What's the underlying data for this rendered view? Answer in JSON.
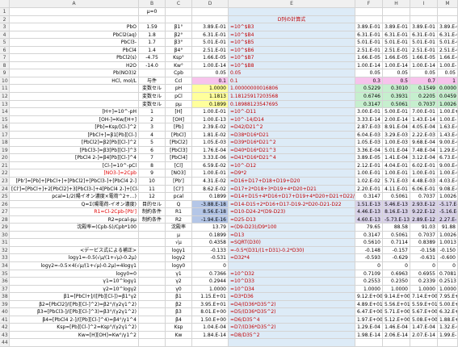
{
  "columns": [
    "A",
    "B",
    "C",
    "D",
    "E",
    "F",
    "H",
    "I",
    "M"
  ],
  "rows": [
    [
      "1",
      null,
      "μ=0",
      null,
      null,
      null,
      null,
      null,
      null,
      null
    ],
    [
      "2",
      null,
      null,
      null,
      null,
      "D列の計算式",
      null,
      null,
      null,
      null
    ],
    [
      "3",
      "PbO",
      "1.59",
      "β1°",
      "3.89.E-01",
      "=10^$B3",
      "3.89.E-01",
      "3.89.E-01",
      "3.89.E-01",
      "3.89.E-01"
    ],
    [
      "4",
      "PbCl2(aq)",
      "1.8",
      "β2°",
      "6.31.E-01",
      "=10^$B4",
      "6.31.E-01",
      "6.31.E-01",
      "6.31.E-01",
      "6.31.E-01"
    ],
    [
      "5",
      "PbCl3-",
      "1.7",
      "β3°",
      "5.01.E-01",
      "=10^$B5",
      "5.01.E-01",
      "5.01.E-01",
      "5.01.E-01",
      "5.01.E-01"
    ],
    [
      "6",
      "PbCl4",
      "1.4",
      "β4°",
      "2.51.E-01",
      "=10^$B6",
      "2.51.E-01",
      "2.51.E-01",
      "2.51.E-01",
      "2.51.E-01"
    ],
    [
      "7",
      "PbCl2(s)",
      "-4.75",
      "Ksp°",
      "1.66.E-05",
      "=10^$B7",
      "1.66.E-05",
      "1.66.E-05",
      "1.66.E-05",
      "1.66.E-05"
    ],
    [
      "8",
      "H2O",
      "-14.0",
      "Kw°",
      "1.00.E-14",
      "=10^$B8",
      "1.00.E-14",
      "1.00.E-14",
      "1.00.E-14",
      "1.00.E-14"
    ],
    [
      "9",
      "Pb(NO3)2",
      null,
      "Cpb",
      "0.05",
      "0.05",
      "0.05",
      "0.05",
      "0.05",
      "0.05"
    ],
    [
      "10",
      "HCl, mol/L",
      "与件",
      "Ccl",
      "0.1",
      "0.1",
      "0.3",
      "0.5",
      "0.7",
      "1"
    ],
    [
      "11",
      null,
      "変数セル",
      "pH",
      "1.0000",
      "1.00000000016806",
      "0.5229",
      "0.3010",
      "0.1549",
      "0.0000"
    ],
    [
      "12",
      null,
      "変数セル",
      "pCl",
      "1.1813",
      "1.18125917203568",
      "0.6746",
      "0.3931",
      "0.2205",
      "0.0459"
    ],
    [
      "13",
      null,
      "変数セル",
      "pμ",
      "0.1899",
      "0.18988123547695",
      "0.3147",
      "0.5061",
      "0.7037",
      "1.0026"
    ],
    [
      "14",
      "[H+]=10^-pH",
      "1",
      "[H]",
      "1.00.E-01",
      "=10^-D11",
      "3.00.E-01",
      "5.00.E-01",
      "7.00.E-01",
      "1.00.E+00"
    ],
    [
      "15",
      "[OH-]=Kw/[H+]",
      "2",
      "[OH]",
      "1.00.E-13",
      "=10^-14/D14",
      "3.33.E-14",
      "2.00.E-14",
      "1.43.E-14",
      "1.00.E-14"
    ],
    [
      "16",
      "[Pb]=Ksp/[Cl-]^2",
      "3",
      "[Pb]",
      "2.39.E-02",
      "=D42/D21^2",
      "2.87.E-03",
      "8.91.E-04",
      "4.05.E-04",
      "1.63.E-04"
    ],
    [
      "17",
      "[PbCl+]=β1[Pb][Cl-]",
      "4",
      "[PbCl]",
      "1.81.E-02",
      "=D38*D16*D21",
      "6.04.E-03",
      "3.29.E-03",
      "2.22.E-03",
      "1.43.E-03"
    ],
    [
      "18",
      "[PbCl2]=β2[Pb][Cl-]^2",
      "5",
      "[PbCl2]",
      "1.05.E-03",
      "=D39*D16*D21^2",
      "1.05.E-03",
      "1.00.E-03",
      "9.68.E-04",
      "9.00.E-04"
    ],
    [
      "19",
      "[PbCl3-]=β3[Pb][Cl-]^3",
      "6",
      "[PbCl3]",
      "1.76.E-04",
      "=D40*D16*D21^3",
      "3.36.E-04",
      "5.01.E-04",
      "7.48.E-04",
      "1.29.E-03"
    ],
    [
      "20",
      "[PbCl4 2-]=β4[Pb][Cl-]^4",
      "7",
      "[PbCl4]",
      "3.33.E-06",
      "=D41*D16*D21^4",
      "3.89.E-05",
      "1.41.E-04",
      "3.12.E-04",
      "6.73.E-04"
    ],
    [
      "21",
      "[Cl-]=10^-pCl",
      "8",
      "[Cl]",
      "6.59.E-02",
      "=10^-D12",
      "2.12.E-01",
      "4.04.E-01",
      "6.02.E-01",
      "9.00.E-01"
    ],
    [
      "22",
      "[NO3-]=2Cpb",
      "9",
      "[NO3]",
      "1.00.E-01",
      "=D9*2",
      "1.00.E-01",
      "1.00.E-01",
      "1.00.E-01",
      "1.00.E-01"
    ],
    [
      "23",
      "[Pb']=[Pb]+[PbCl+]+[PbCl2]+[PbCl3-]+[PbCl4 2-]",
      "10",
      "[Pb']",
      "4.31.E-02",
      "=D16+D17+D18+D19+D20",
      "1.02.E-02",
      "5.71.E-03",
      "4.48.E-03",
      "4.03.E-03"
    ],
    [
      "24",
      "[Cl']=[PbCl+]+2[PbCl2]+3[PbCl3-]+4[PbCl4 2-]+[Cl-]",
      "11",
      "[Cl']",
      "8.62.E-02",
      "=D17+2*D18+3*D19+4*D20+D21",
      "2.20.E-01",
      "4.11.E-01",
      "6.06.E-01",
      "9.08.E-01"
    ],
    [
      "25",
      "pcal=1/2(陽イオン濃度×電荷^2+…)",
      "12",
      "pcal",
      "0.1899",
      "=D14+D15+4*D16+D17+D19+4*D20+D21+D22/2",
      "0.3147",
      "0.5061",
      "0.7037",
      "1.0026"
    ],
    [
      "26",
      "Q=Σ(陽電荷-イオン濃度)",
      "目的セル",
      "Q",
      "-3.88.E-18",
      "=D14-D15+2*D16+D17-D19-2*D20-D21-D22",
      "1.51.E-13",
      "5.46.E-13",
      "2.93.E-12",
      "-5.17.E-12"
    ],
    [
      "27",
      "R1=Cl-2Cpb-[Pb']",
      "制約条件",
      "R1",
      "8.56.E-18",
      "=D10-D24-2*(D9-D23)",
      "4.46.E-13",
      "8.16.E-13",
      "9.22.E-12",
      "-5.16.E-12"
    ],
    [
      "28",
      "R2=pcal-pμ",
      "制約条件",
      "R2",
      "-1.94.E-16",
      "=D25-D13",
      "4.60.E-13",
      "-5.73.E-13",
      "2.89.E-12",
      "2.27.E-12"
    ],
    [
      "29",
      "沈殿率=(Cpb-S)/Cpb*100",
      null,
      "沈殿率",
      "13.79",
      "=(D9-D23)/D9*100",
      "79.65",
      "88.58",
      "91.03",
      "91.88"
    ],
    [
      "30",
      null,
      null,
      "μ",
      "0.1899",
      "=D13",
      "0.3147",
      "0.5061",
      "0.7037",
      "1.0026"
    ],
    [
      "31",
      null,
      null,
      "√μ",
      "0.4358",
      "=SQRT(D30)",
      "0.5610",
      "0.7114",
      "0.8389",
      "1.0013"
    ],
    [
      "32",
      "<デービス式による補正>",
      null,
      "logγ1",
      "-0.133",
      "=-0.5*(D31/(1+D31)-0.2*D30)",
      "-0.148",
      "-0.157",
      "-0.158",
      "-0.150"
    ],
    [
      "33",
      "logγ1=-0.5(√μ/(1+√μ)-0.2μ)",
      null,
      "logγ2",
      "-0.531",
      "=D32*4",
      "-0.593",
      "-0.629",
      "-0.631",
      "-0.600"
    ],
    [
      "34",
      "logγ2=-0.5×4(√μ/(1+√μ)-0.2μ)=4logγ1",
      null,
      "logγ0",
      "0",
      null,
      "0",
      "0",
      "0",
      "0"
    ],
    [
      "35",
      "logγ0=0",
      null,
      "γ1",
      "0.7366",
      "=10^D32",
      "0.7109",
      "0.6963",
      "0.6955",
      "0.7081"
    ],
    [
      "36",
      "γ1=10^logγ1",
      null,
      "γ2",
      "0.2944",
      "=10^D33",
      "0.2553",
      "0.2350",
      "0.2339",
      "0.2513"
    ],
    [
      "37",
      "γ2=10^logγ2",
      null,
      "γ0",
      "1.0000",
      "=10^D34",
      "1.0000",
      "1.0000",
      "1.0000",
      "1.0000"
    ],
    [
      "38",
      "β1=[PbCl+]/([Pb][Cl-])=β1°γ2",
      null,
      "β1",
      "1.15.E+01",
      "=D3*D36",
      "9.12.E+00",
      "9.14.E+00",
      "7.14.E+00",
      "7.95.E+00"
    ],
    [
      "39",
      "β2=[PbCl2]/([Pb][Cl-]^2)=β2°/(γ2γ1^2)",
      null,
      "β2",
      "3.95.E+01",
      "=D4/(D36*D35^2)",
      "4.89.E+01",
      "5.56.E+01",
      "5.59.E+01",
      "5.00.E+01"
    ],
    [
      "40",
      "β3=[PbCl3-]/([Pb][Cl-]^3)=β3°/(γ2γ1^2)",
      null,
      "β3",
      "8.01.E+00",
      "=D5/(D36*D35^2)",
      "6.47.E+00",
      "5.71.E+00",
      "5.67.E+00",
      "6.32.E+00"
    ],
    [
      "41",
      "β4=[PbCl4 2-]/([Pb][Cl-]^4)=β4°/γ1^4",
      null,
      "β4",
      "1.50.E+00",
      "=D6/D35^4",
      "1.97.E+00",
      "5.12.E+00",
      "5.08.E+00",
      "1.88.E+00"
    ],
    [
      "42",
      "Ksp=[Pb][Cl-]^2=Ksp°/(γ2γ1^2)",
      null,
      "Ksp",
      "1.04.E-04",
      "=D7/(D36*D35^2)",
      "1.29.E-04",
      "1.46.E-04",
      "1.47.E-04",
      "1.32.E-04"
    ],
    [
      "43",
      "Kw=[H][OH]=Kw°/γ1^2",
      null,
      "Kw",
      "1.84.E-14",
      "=D8/D35^2",
      "1.98.E-14",
      "2.06.E-14",
      "2.07.E-14",
      "1.99.E-14"
    ],
    [
      "44",
      null,
      null,
      null,
      null,
      null,
      null,
      null,
      null,
      null
    ]
  ]
}
